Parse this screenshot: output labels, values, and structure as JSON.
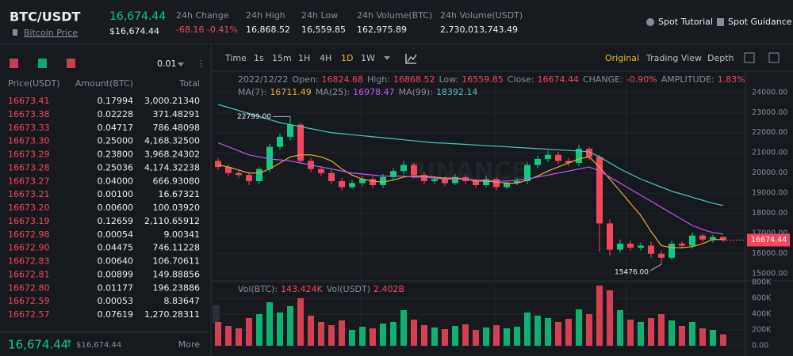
{
  "header": {
    "symbol": "BTC/USDT",
    "link": "Bitcoin Price",
    "price": "16,674.44",
    "price_usd": "$16,674.44",
    "stats": [
      {
        "label": "24h Change",
        "value": "-68.16 -0.41%"
      },
      {
        "label": "24h High",
        "value": "16,868.52"
      },
      {
        "label": "24h Low",
        "value": "16,559.85"
      },
      {
        "label": "24h Volume(BTC)",
        "value": "162,975.89"
      },
      {
        "label": "24h Volume(USDT)",
        "value": "2,730,013,743.49"
      }
    ],
    "links": [
      "Spot Tutorial",
      "Spot Guidance"
    ]
  },
  "order_book": {
    "precision": "0.01",
    "columns": [
      "Price(USDT)",
      "Amount(BTC)",
      "Total"
    ],
    "rows": [
      [
        "16673.41",
        "0.17994",
        "3,000.21340"
      ],
      [
        "16673.38",
        "0.02228",
        "371.48291"
      ],
      [
        "16673.33",
        "0.04717",
        "786.48098"
      ],
      [
        "16673.30",
        "0.25000",
        "4,168.32500"
      ],
      [
        "16673.29",
        "0.23800",
        "3,968.24302"
      ],
      [
        "16673.28",
        "0.25036",
        "4,174.32238"
      ],
      [
        "16673.27",
        "0.04000",
        "666.93080"
      ],
      [
        "16673.21",
        "0.00100",
        "16.67321"
      ],
      [
        "16673.20",
        "0.00600",
        "100.03920"
      ],
      [
        "16673.19",
        "0.12659",
        "2,110.65912"
      ],
      [
        "16672.98",
        "0.00054",
        "9.00341"
      ],
      [
        "16672.90",
        "0.04475",
        "746.11228"
      ],
      [
        "16672.83",
        "0.00640",
        "106.70611"
      ],
      [
        "16672.81",
        "0.00899",
        "149.88856"
      ],
      [
        "16672.80",
        "0.01177",
        "196.23886"
      ],
      [
        "16672.59",
        "0.00053",
        "8.83647"
      ],
      [
        "16672.57",
        "0.07619",
        "1,270.28311"
      ]
    ],
    "last_price": "16,674.44",
    "last_price_usd": "$16,674.44",
    "more": "More"
  },
  "toolbar": {
    "intervals": [
      "Time",
      "1s",
      "15m",
      "1H",
      "4H",
      "1D",
      "1W"
    ],
    "active": "1D",
    "views": [
      "Original",
      "Trading View",
      "Depth"
    ],
    "active_view": "Original"
  },
  "chart_data": {
    "type": "candlestick",
    "watermark": "BINANCE",
    "info_date": "2022/12/22",
    "info": [
      {
        "label": "Open:",
        "value": "16824.68"
      },
      {
        "label": "High:",
        "value": "16868.52"
      },
      {
        "label": "Low:",
        "value": "16559.85"
      },
      {
        "label": "Close:",
        "value": "16674.44"
      },
      {
        "label": "CHANGE:",
        "value": "-0.90%"
      },
      {
        "label": "AMPLITUDE:",
        "value": "1.83%"
      }
    ],
    "ma_legend": [
      {
        "label": "MA(7):",
        "value": "16711.49"
      },
      {
        "label": "MA(25):",
        "value": "16978.47"
      },
      {
        "label": "MA(99):",
        "value": "18392.14"
      }
    ],
    "vol_legend": [
      {
        "label": "Vol(BTC):",
        "value": "143.424K"
      },
      {
        "label": "Vol(USDT)",
        "value": "2.402B"
      }
    ],
    "up_color": "#0ecb81",
    "down_color": "#f6465d",
    "candles": {
      "open": [
        20600,
        20300,
        20000,
        19900,
        19600,
        20200,
        21300,
        21800,
        22400,
        20600,
        20200,
        20000,
        19600,
        19300,
        19500,
        19700,
        19400,
        19800,
        20100,
        20400,
        19900,
        19600,
        19700,
        19500,
        19800,
        19600,
        19400,
        19700,
        19300,
        19500,
        19600,
        20400,
        20700,
        20900,
        20600,
        20500,
        21200,
        20800,
        17500,
        16200,
        16500,
        16300,
        16400,
        16000,
        15800,
        16500,
        16400,
        16900,
        16700,
        16824.68
      ],
      "high": [
        20750,
        20450,
        20150,
        20050,
        20300,
        21450,
        21950,
        22799,
        22500,
        20750,
        20350,
        20150,
        19750,
        19650,
        19850,
        19850,
        19950,
        20250,
        20600,
        20500,
        20050,
        19850,
        19850,
        19950,
        19900,
        19700,
        19850,
        19800,
        19600,
        19750,
        20550,
        20850,
        21100,
        21050,
        20750,
        21400,
        21300,
        20900,
        17700,
        16700,
        16650,
        16550,
        16600,
        16150,
        16650,
        16600,
        17050,
        17000,
        16950,
        16868.52
      ],
      "low": [
        20150,
        19850,
        19750,
        19400,
        19450,
        20050,
        21150,
        21600,
        20450,
        20050,
        19850,
        19450,
        19150,
        19200,
        19350,
        19250,
        19250,
        19650,
        19950,
        19750,
        19450,
        19450,
        19350,
        19400,
        19450,
        19250,
        19300,
        19150,
        19200,
        19400,
        19450,
        20250,
        20550,
        20450,
        20350,
        20350,
        20650,
        16100,
        15900,
        16050,
        16150,
        16150,
        15800,
        15476,
        15700,
        16250,
        16250,
        16550,
        16550,
        16559.85
      ],
      "close": [
        20300,
        20000,
        19900,
        19600,
        20200,
        21300,
        21800,
        22400,
        20600,
        20200,
        20000,
        19600,
        19300,
        19500,
        19700,
        19400,
        19800,
        20100,
        20400,
        19900,
        19600,
        19700,
        19500,
        19800,
        19600,
        19400,
        19700,
        19300,
        19500,
        19600,
        20400,
        20700,
        20900,
        20600,
        20500,
        21200,
        20800,
        17500,
        16200,
        16500,
        16300,
        16400,
        16000,
        15800,
        16500,
        16400,
        16900,
        16700,
        16824.68,
        16674.44
      ]
    },
    "volume": [
      300000,
      250000,
      220000,
      350000,
      400000,
      550000,
      420000,
      500000,
      600000,
      380000,
      300000,
      260000,
      320000,
      200000,
      240000,
      220000,
      280000,
      300000,
      450000,
      330000,
      260000,
      230000,
      210000,
      250000,
      270000,
      200000,
      230000,
      260000,
      220000,
      240000,
      420000,
      380000,
      350000,
      300000,
      340000,
      460000,
      400000,
      760000,
      700000,
      450000,
      330000,
      300000,
      350000,
      400000,
      320000,
      250000,
      300000,
      220000,
      200000,
      143424
    ],
    "series": [
      {
        "name": "MA(7)",
        "color": "#e8a93a",
        "values": [
          20400,
          20300,
          20150,
          20000,
          20000,
          20200,
          20500,
          20800,
          20900,
          20900,
          20800,
          20600,
          20200,
          19900,
          19700,
          19600,
          19550,
          19650,
          19800,
          19850,
          19850,
          19800,
          19750,
          19750,
          19700,
          19600,
          19600,
          19550,
          19500,
          19500,
          19650,
          19850,
          20100,
          20300,
          20500,
          20700,
          20800,
          20300,
          19700,
          19100,
          18500,
          17900,
          17100,
          16400,
          16300,
          16300,
          16350,
          16500,
          16700,
          16711.49
        ]
      },
      {
        "name": "MA(25)",
        "color": "#c156f0",
        "values": [
          21500,
          21300,
          21100,
          20900,
          20800,
          20700,
          20650,
          20600,
          20500,
          20400,
          20300,
          20200,
          20100,
          20000,
          19950,
          19900,
          19850,
          19850,
          19850,
          19800,
          19800,
          19750,
          19700,
          19700,
          19700,
          19650,
          19650,
          19600,
          19600,
          19650,
          19700,
          19800,
          19900,
          20000,
          20100,
          20200,
          20300,
          20100,
          19800,
          19500,
          19200,
          18900,
          18600,
          18300,
          18000,
          17700,
          17400,
          17200,
          17050,
          16978.47
        ]
      },
      {
        "name": "MA(99)",
        "color": "#4dc7c1",
        "values": [
          23400,
          23250,
          23100,
          22950,
          22800,
          22650,
          22500,
          22400,
          22300,
          22200,
          22100,
          22000,
          21950,
          21900,
          21850,
          21800,
          21750,
          21700,
          21650,
          21600,
          21550,
          21500,
          21480,
          21450,
          21420,
          21390,
          21360,
          21330,
          21300,
          21270,
          21240,
          21210,
          21180,
          21150,
          21120,
          21090,
          21050,
          20800,
          20500,
          20200,
          19950,
          19700,
          19500,
          19300,
          19100,
          18950,
          18800,
          18650,
          18500,
          18392.14
        ]
      }
    ],
    "annotations": [
      "22799.00",
      "15476.00"
    ],
    "price_tag": "16674.44",
    "ylim": [
      14850,
      25050
    ],
    "yticks": [
      {
        "value": 24000,
        "label": "24000.00"
      },
      {
        "value": 23000,
        "label": "23000.00"
      },
      {
        "value": 22000,
        "label": "22000.00"
      },
      {
        "value": 21000,
        "label": "21000.00"
      },
      {
        "value": 20000,
        "label": "20000.00"
      },
      {
        "value": 19000,
        "label": "19000.00"
      },
      {
        "value": 18000,
        "label": "18000.00"
      },
      {
        "value": 17000,
        "label": "17000.00"
      },
      {
        "value": 16000,
        "label": "16000.00"
      },
      {
        "value": 15000,
        "label": "15000.00"
      }
    ],
    "y2lim": [
      0,
      830000
    ],
    "y2ticks": [
      {
        "value": 800000,
        "label": "800K"
      },
      {
        "value": 600000,
        "label": "600K"
      },
      {
        "value": 400000,
        "label": "400K"
      },
      {
        "value": 200000,
        "label": "200K"
      },
      {
        "value": 0,
        "label": "0.00"
      }
    ],
    "grid": true
  }
}
